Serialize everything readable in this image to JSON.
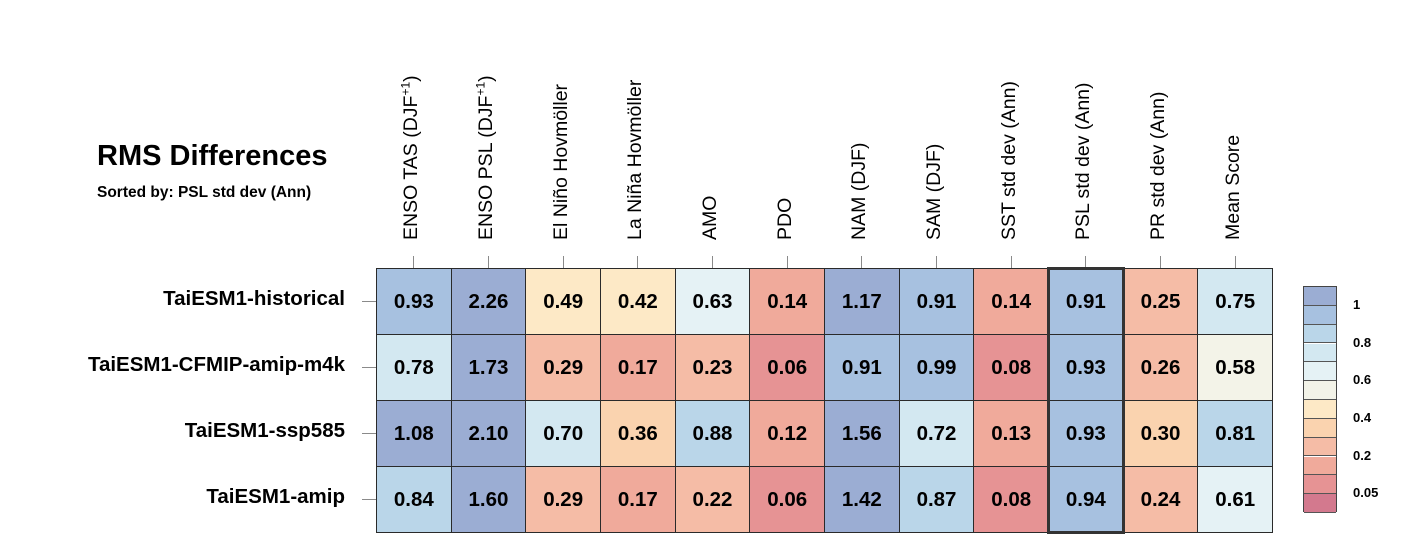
{
  "chart_data": {
    "type": "heatmap",
    "title": "RMS Differences",
    "subtitle": "Sorted by: PSL std dev (Ann)",
    "columns": [
      {
        "label": "ENSO TAS (DJF",
        "sup": "+1",
        "suffix": ")"
      },
      {
        "label": "ENSO PSL (DJF",
        "sup": "+1",
        "suffix": ")"
      },
      {
        "label": "El Niño Hovmöller",
        "sup": "",
        "suffix": ""
      },
      {
        "label": "La Niña Hovmöller",
        "sup": "",
        "suffix": ""
      },
      {
        "label": "AMO",
        "sup": "",
        "suffix": ""
      },
      {
        "label": "PDO",
        "sup": "",
        "suffix": ""
      },
      {
        "label": "NAM (DJF)",
        "sup": "",
        "suffix": ""
      },
      {
        "label": "SAM (DJF)",
        "sup": "",
        "suffix": ""
      },
      {
        "label": "SST std dev (Ann)",
        "sup": "",
        "suffix": ""
      },
      {
        "label": "PSL std dev (Ann)",
        "sup": "",
        "suffix": ""
      },
      {
        "label": "PR std dev (Ann)",
        "sup": "",
        "suffix": ""
      },
      {
        "label": "Mean Score",
        "sup": "",
        "suffix": ""
      }
    ],
    "rows": [
      "TaiESM1-historical",
      "TaiESM1-CFMIP-amip-m4k",
      "TaiESM1-ssp585",
      "TaiESM1-amip"
    ],
    "values": [
      [
        "0.93",
        "2.26",
        "0.49",
        "0.42",
        "0.63",
        "0.14",
        "1.17",
        "0.91",
        "0.14",
        "0.91",
        "0.25",
        "0.75"
      ],
      [
        "0.78",
        "1.73",
        "0.29",
        "0.17",
        "0.23",
        "0.06",
        "0.91",
        "0.99",
        "0.08",
        "0.93",
        "0.26",
        "0.58"
      ],
      [
        "1.08",
        "2.10",
        "0.70",
        "0.36",
        "0.88",
        "0.12",
        "1.56",
        "0.72",
        "0.13",
        "0.93",
        "0.30",
        "0.81"
      ],
      [
        "0.84",
        "1.60",
        "0.29",
        "0.17",
        "0.22",
        "0.06",
        "1.42",
        "0.87",
        "0.08",
        "0.94",
        "0.24",
        "0.61"
      ]
    ],
    "highlighted_column": 9,
    "colorbar": {
      "levels": [
        0.0,
        0.05,
        0.1,
        0.2,
        0.3,
        0.4,
        0.5,
        0.6,
        0.7,
        0.8,
        0.9,
        1.0,
        1.2
      ],
      "colors": [
        "#d3798e",
        "#e69394",
        "#f0aa9b",
        "#f5bca6",
        "#fad3af",
        "#fde9c6",
        "#f3f3e8",
        "#e5f2f5",
        "#d3e8f1",
        "#bad6e9",
        "#a7c1e0",
        "#9badd3"
      ],
      "tick_labels": [
        {
          "text": "1",
          "level": 1.0
        },
        {
          "text": "0.8",
          "level": 0.8
        },
        {
          "text": "0.6",
          "level": 0.6
        },
        {
          "text": "0.4",
          "level": 0.4
        },
        {
          "text": "0.2",
          "level": 0.2
        },
        {
          "text": "0.05",
          "level": 0.05
        }
      ]
    }
  }
}
